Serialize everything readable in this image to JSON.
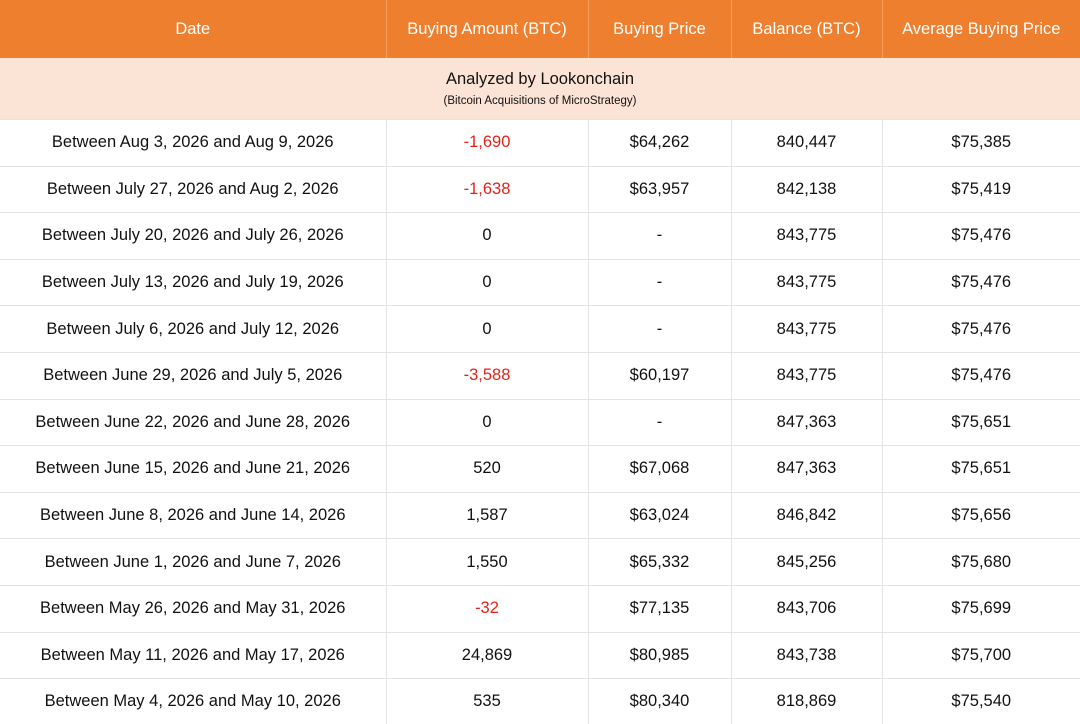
{
  "header": {
    "columns": [
      "Date",
      "Buying Amount (BTC)",
      "Buying Price",
      "Balance (BTC)",
      "Average Buying Price"
    ]
  },
  "banner": {
    "title": "Analyzed by Lookonchain",
    "subtitle": "(Bitcoin Acquisitions of MicroStrategy)"
  },
  "colors": {
    "header_bg": "#ee7f2f",
    "banner_bg": "#fbe4d5",
    "negative": "#e2231a"
  },
  "rows": [
    {
      "date": "Between Aug 3, 2026 and Aug 9, 2026",
      "amount": "-1,690",
      "price": "$64,262",
      "balance": "840,447",
      "avg": "$75,385",
      "negative": true
    },
    {
      "date": "Between July 27, 2026 and Aug 2, 2026",
      "amount": "-1,638",
      "price": "$63,957",
      "balance": "842,138",
      "avg": "$75,419",
      "negative": true
    },
    {
      "date": "Between July 20, 2026 and July 26, 2026",
      "amount": "0",
      "price": "-",
      "balance": "843,775",
      "avg": "$75,476",
      "negative": false
    },
    {
      "date": "Between July 13, 2026 and July 19, 2026",
      "amount": "0",
      "price": "-",
      "balance": "843,775",
      "avg": "$75,476",
      "negative": false
    },
    {
      "date": "Between July 6, 2026 and July 12, 2026",
      "amount": "0",
      "price": "-",
      "balance": "843,775",
      "avg": "$75,476",
      "negative": false
    },
    {
      "date": "Between June 29, 2026 and July 5, 2026",
      "amount": "-3,588",
      "price": "$60,197",
      "balance": "843,775",
      "avg": "$75,476",
      "negative": true
    },
    {
      "date": "Between June 22, 2026 and June 28, 2026",
      "amount": "0",
      "price": "-",
      "balance": "847,363",
      "avg": "$75,651",
      "negative": false
    },
    {
      "date": "Between June 15, 2026 and June 21, 2026",
      "amount": "520",
      "price": "$67,068",
      "balance": "847,363",
      "avg": "$75,651",
      "negative": false
    },
    {
      "date": "Between June 8, 2026 and June 14, 2026",
      "amount": "1,587",
      "price": "$63,024",
      "balance": "846,842",
      "avg": "$75,656",
      "negative": false
    },
    {
      "date": "Between June 1, 2026 and June 7, 2026",
      "amount": "1,550",
      "price": "$65,332",
      "balance": "845,256",
      "avg": "$75,680",
      "negative": false
    },
    {
      "date": "Between May 26, 2026 and May 31, 2026",
      "amount": "-32",
      "price": "$77,135",
      "balance": "843,706",
      "avg": "$75,699",
      "negative": true
    },
    {
      "date": "Between May 11, 2026 and May 17, 2026",
      "amount": "24,869",
      "price": "$80,985",
      "balance": "843,738",
      "avg": "$75,700",
      "negative": false
    },
    {
      "date": "Between May 4, 2026 and May 10, 2026",
      "amount": "535",
      "price": "$80,340",
      "balance": "818,869",
      "avg": "$75,540",
      "negative": false
    }
  ]
}
